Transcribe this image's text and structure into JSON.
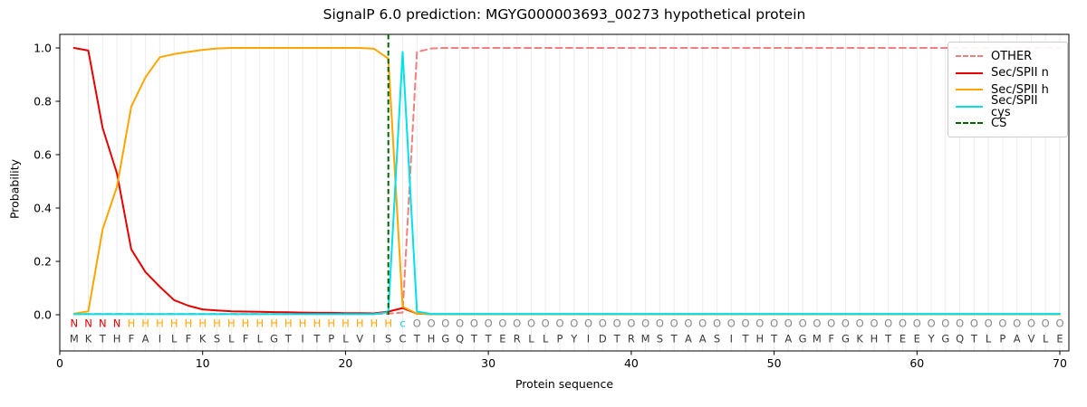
{
  "title": "SignalP 6.0 prediction: MGYG000003693_00273 hypothetical protein",
  "chart_data": {
    "type": "line",
    "title": "SignalP 6.0 prediction: MGYG000003693_00273 hypothetical protein",
    "xlabel": "Protein sequence",
    "ylabel": "Probability",
    "xlim": [
      0,
      70.6
    ],
    "ylim": [
      -0.14,
      1.05
    ],
    "xticks": [
      0,
      10,
      20,
      30,
      40,
      50,
      60,
      70
    ],
    "yticks": [
      0.0,
      0.2,
      0.4,
      0.6,
      0.8,
      1.0
    ],
    "grid": "vertical line at every residue position 1-70",
    "legend_position": "upper right",
    "x_start": 1,
    "x_step": 1,
    "series": [
      {
        "key": "other",
        "label": "OTHER",
        "color": "#f08080",
        "dashed": true,
        "values": [
          0.003,
          0.003,
          0.003,
          0.003,
          0.003,
          0.003,
          0.003,
          0.003,
          0.003,
          0.003,
          0.003,
          0.003,
          0.003,
          0.003,
          0.003,
          0.003,
          0.003,
          0.003,
          0.003,
          0.003,
          0.003,
          0.003,
          0.004,
          0.008,
          0.985,
          0.998,
          1.0,
          1.0,
          1.0,
          1.0,
          1.0,
          1.0,
          1.0,
          1.0,
          1.0,
          1.0,
          1.0,
          1.0,
          1.0,
          1.0,
          1.0,
          1.0,
          1.0,
          1.0,
          1.0,
          1.0,
          1.0,
          1.0,
          1.0,
          1.0,
          1.0,
          1.0,
          1.0,
          1.0,
          1.0,
          1.0,
          1.0,
          1.0,
          1.0,
          1.0,
          1.0,
          1.0,
          1.0,
          1.0,
          1.0,
          1.0,
          1.0,
          1.0,
          1.0,
          1.0
        ]
      },
      {
        "key": "sec-spii-n",
        "label": "Sec/SPII n",
        "color": "#e60000",
        "dashed": false,
        "values": [
          1.0,
          0.99,
          0.7,
          0.53,
          0.245,
          0.16,
          0.105,
          0.055,
          0.034,
          0.02,
          0.016,
          0.013,
          0.012,
          0.011,
          0.01,
          0.009,
          0.008,
          0.007,
          0.007,
          0.006,
          0.006,
          0.005,
          0.012,
          0.025,
          0.004,
          0.002,
          0.002,
          0.002,
          0.002,
          0.002,
          0.002,
          0.002,
          0.002,
          0.002,
          0.002,
          0.002,
          0.002,
          0.002,
          0.002,
          0.002,
          0.002,
          0.002,
          0.002,
          0.002,
          0.002,
          0.002,
          0.002,
          0.002,
          0.002,
          0.002,
          0.002,
          0.002,
          0.002,
          0.002,
          0.002,
          0.002,
          0.002,
          0.002,
          0.002,
          0.002,
          0.002,
          0.002,
          0.002,
          0.002,
          0.002,
          0.002,
          0.002,
          0.002,
          0.002,
          0.002
        ]
      },
      {
        "key": "sec-spii-h",
        "label": "Sec/SPII h",
        "color": "#ffa500",
        "dashed": false,
        "values": [
          0.004,
          0.013,
          0.32,
          0.48,
          0.78,
          0.89,
          0.965,
          0.977,
          0.985,
          0.993,
          0.998,
          1.0,
          1.0,
          1.0,
          1.0,
          1.0,
          1.0,
          1.0,
          1.0,
          1.0,
          1.0,
          0.997,
          0.96,
          0.03,
          0.004,
          0.002,
          0.002,
          0.002,
          0.002,
          0.002,
          0.002,
          0.002,
          0.002,
          0.002,
          0.002,
          0.002,
          0.002,
          0.002,
          0.002,
          0.002,
          0.002,
          0.002,
          0.002,
          0.002,
          0.002,
          0.002,
          0.002,
          0.002,
          0.002,
          0.002,
          0.002,
          0.002,
          0.002,
          0.002,
          0.002,
          0.002,
          0.002,
          0.002,
          0.002,
          0.002,
          0.002,
          0.002,
          0.002,
          0.002,
          0.002,
          0.002,
          0.002,
          0.002,
          0.002,
          0.002
        ]
      },
      {
        "key": "sec-spii-cys",
        "label": "Sec/SPII cys",
        "color": "#00e1ea",
        "dashed": false,
        "values": [
          0.002,
          0.002,
          0.002,
          0.002,
          0.002,
          0.002,
          0.002,
          0.002,
          0.002,
          0.002,
          0.002,
          0.002,
          0.002,
          0.002,
          0.002,
          0.002,
          0.002,
          0.002,
          0.002,
          0.002,
          0.002,
          0.002,
          0.01,
          0.985,
          0.012,
          0.003,
          0.003,
          0.003,
          0.003,
          0.003,
          0.003,
          0.003,
          0.003,
          0.003,
          0.003,
          0.003,
          0.003,
          0.003,
          0.003,
          0.003,
          0.003,
          0.003,
          0.003,
          0.003,
          0.003,
          0.003,
          0.003,
          0.003,
          0.003,
          0.003,
          0.003,
          0.003,
          0.003,
          0.003,
          0.003,
          0.003,
          0.003,
          0.003,
          0.003,
          0.003,
          0.003,
          0.003,
          0.003,
          0.003,
          0.003,
          0.003,
          0.003,
          0.003,
          0.003,
          0.003
        ]
      }
    ],
    "cs_marker": {
      "key": "cs",
      "label": "CS",
      "color": "#006400",
      "dashed": true,
      "position": 23
    },
    "sequence": "MKTHFAILFKSLFLGTITPLVISCTHGQTTERLLPYIDTRMSTAASITHTAGMFGKHTEEYGQTLPAVLE",
    "region_labels": "NNNNHHHHHHHHHHHHHHHHHHHcOOOOOOOOOOOOOOOOOOOOOOOOOOOOOOOOOOOOOOOOOOOOOO",
    "region_colors": {
      "N": "#e60000",
      "H": "#ffa500",
      "c": "#00cfdc",
      "O": "#888888"
    },
    "sequence_color": "#3a3a3a"
  }
}
